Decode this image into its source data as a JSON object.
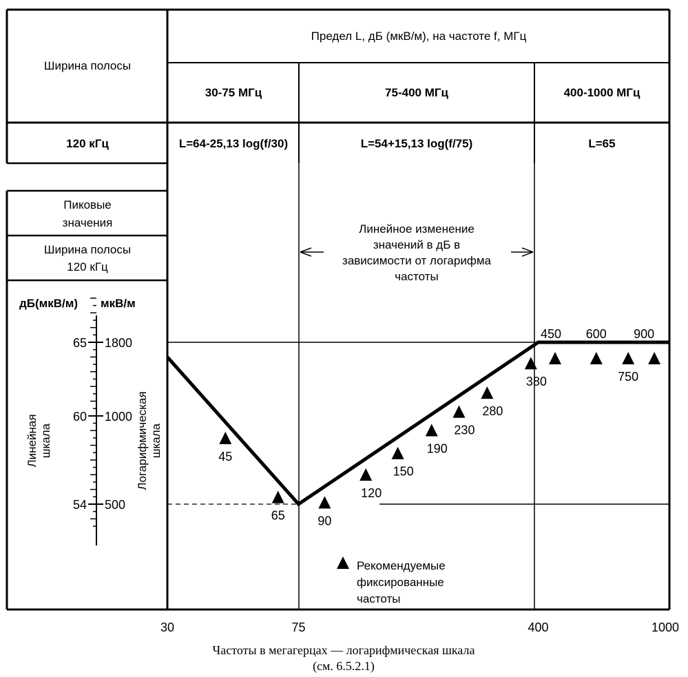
{
  "table": {
    "bandwidth_header": "Ширина полосы",
    "limit_header": "Предел L, дБ (мкВ/м), на частоте f, МГц",
    "bands": [
      "30-75 МГц",
      "75-400 МГц",
      "400-1000 МГц"
    ],
    "row_bandwidth": "120 кГц",
    "formulas": [
      "L=64-25,13 log(f/30)",
      "L=54+15,13 log(f/75)",
      "L=65"
    ]
  },
  "left_panel": {
    "peak_line1": "Пиковые",
    "peak_line2": "значения",
    "bw_line1": "Ширина полосы",
    "bw_line2": "120 кГц",
    "unit_db": "дБ(мкВ/м)",
    "unit_uv": "мкВ/м",
    "linear_scale_line1": "Линейная",
    "linear_scale_line2": "шкала",
    "log_scale_line1": "Логарифмическая",
    "log_scale_line2": "шкала"
  },
  "annotation": {
    "line1": "Линейное  изменение",
    "line2": "значений в дБ в",
    "line3": "зависимости от логарифма",
    "line4": "частоты"
  },
  "legend": {
    "line1": "Рекомендуемые",
    "line2": "фиксированные",
    "line3": "частоты"
  },
  "caption": {
    "line1": "Частоты в мегагерцах — логарифмическая шкала",
    "line2": "(см. 6.5.2.1)"
  },
  "chart_data": {
    "type": "line",
    "x_scale": "log",
    "xlim": [
      30,
      1000
    ],
    "x_ticks": [
      30,
      75,
      400,
      1000
    ],
    "ylim": [
      52,
      68
    ],
    "y_ticks_db": [
      65,
      60,
      54
    ],
    "y_ticks_uv": [
      1800,
      1000,
      500
    ],
    "series": [
      {
        "x": [
          30,
          75,
          400,
          1000
        ],
        "y": [
          64,
          54,
          65,
          65
        ]
      }
    ],
    "recommended_frequencies": [
      45,
      65,
      90,
      120,
      150,
      190,
      230,
      280,
      380,
      450,
      600,
      750,
      900
    ],
    "reference_lines_db": [
      65,
      54
    ]
  }
}
